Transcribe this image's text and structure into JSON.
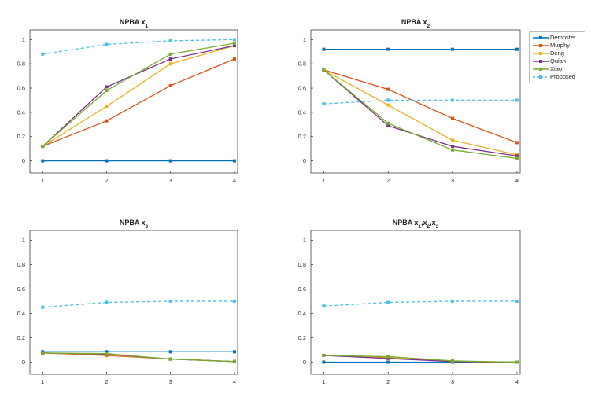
{
  "chart_data": [
    {
      "type": "line",
      "title": "NPBA x",
      "title_subscript": "1",
      "x": [
        1,
        2,
        3,
        4
      ],
      "xlim": [
        0.8,
        4.05
      ],
      "ylim": [
        -0.1,
        1.08
      ],
      "xticks": [
        "1",
        "2",
        "3",
        "4"
      ],
      "yticks": [
        "0",
        "0.2",
        "0.4",
        "0.6",
        "0.8",
        "1"
      ],
      "series": [
        {
          "name": "Dempster",
          "values": [
            0.0,
            0.0,
            0.0,
            0.0
          ]
        },
        {
          "name": "Murphy",
          "values": [
            0.12,
            0.33,
            0.62,
            0.84
          ]
        },
        {
          "name": "Deng",
          "values": [
            0.12,
            0.45,
            0.8,
            0.95
          ]
        },
        {
          "name": "Quian",
          "values": [
            0.12,
            0.61,
            0.84,
            0.95
          ]
        },
        {
          "name": "Xiao",
          "values": [
            0.12,
            0.58,
            0.88,
            0.97
          ]
        },
        {
          "name": "Proposed",
          "values": [
            0.88,
            0.96,
            0.99,
            1.0
          ]
        }
      ]
    },
    {
      "type": "line",
      "title": "NPBA x",
      "title_subscript": "2",
      "x": [
        1,
        2,
        3,
        4
      ],
      "xlim": [
        0.8,
        4.05
      ],
      "ylim": [
        -0.1,
        1.08
      ],
      "xticks": [
        "1",
        "2",
        "3",
        "4"
      ],
      "yticks": [
        "0",
        "0.2",
        "0.4",
        "0.6",
        "0.8",
        "1"
      ],
      "series": [
        {
          "name": "Dempster",
          "values": [
            0.92,
            0.92,
            0.92,
            0.92
          ]
        },
        {
          "name": "Murphy",
          "values": [
            0.75,
            0.59,
            0.35,
            0.15
          ]
        },
        {
          "name": "Deng",
          "values": [
            0.75,
            0.46,
            0.17,
            0.05
          ]
        },
        {
          "name": "Quian",
          "values": [
            0.75,
            0.29,
            0.12,
            0.04
          ]
        },
        {
          "name": "Xiao",
          "values": [
            0.75,
            0.31,
            0.09,
            0.02
          ]
        },
        {
          "name": "Proposed",
          "values": [
            0.47,
            0.5,
            0.5,
            0.5
          ]
        }
      ]
    },
    {
      "type": "line",
      "title": "NPBA x",
      "title_subscript": "3",
      "x": [
        1,
        2,
        3,
        4
      ],
      "xlim": [
        0.8,
        4.05
      ],
      "ylim": [
        -0.1,
        1.08
      ],
      "xticks": [
        "1",
        "2",
        "3",
        "4"
      ],
      "yticks": [
        "0",
        "0.2",
        "0.4",
        "0.6",
        "0.8",
        "1"
      ],
      "series": [
        {
          "name": "Dempster",
          "values": [
            0.085,
            0.085,
            0.085,
            0.085
          ]
        },
        {
          "name": "Murphy",
          "values": [
            0.075,
            0.055,
            0.025,
            0.005
          ]
        },
        {
          "name": "Deng",
          "values": [
            0.075,
            0.06,
            0.025,
            0.005
          ]
        },
        {
          "name": "Quian",
          "values": [
            0.075,
            0.065,
            0.025,
            0.005
          ]
        },
        {
          "name": "Xiao",
          "values": [
            0.075,
            0.07,
            0.025,
            0.005
          ]
        },
        {
          "name": "Proposed",
          "values": [
            0.45,
            0.49,
            0.5,
            0.5
          ]
        }
      ]
    },
    {
      "type": "line",
      "title": "NPBA x",
      "title_subscript": "1",
      "title_parts": [
        "NPBA x",
        "1",
        ",x",
        "2",
        ",x",
        "3"
      ],
      "x": [
        1,
        2,
        3,
        4
      ],
      "xlim": [
        0.8,
        4.05
      ],
      "ylim": [
        -0.1,
        1.08
      ],
      "xticks": [
        "1",
        "2",
        "3",
        "4"
      ],
      "yticks": [
        "0",
        "0.2",
        "0.4",
        "0.6",
        "0.8",
        "1"
      ],
      "series": [
        {
          "name": "Dempster",
          "values": [
            0.0,
            0.0,
            0.0,
            0.0
          ]
        },
        {
          "name": "Murphy",
          "values": [
            0.055,
            0.035,
            0.005,
            0.0
          ]
        },
        {
          "name": "Deng",
          "values": [
            0.055,
            0.04,
            0.005,
            0.0
          ]
        },
        {
          "name": "Quian",
          "values": [
            0.055,
            0.03,
            0.005,
            0.0
          ]
        },
        {
          "name": "Xiao",
          "values": [
            0.055,
            0.045,
            0.01,
            0.0
          ]
        },
        {
          "name": "Proposed",
          "values": [
            0.46,
            0.49,
            0.5,
            0.5
          ]
        }
      ]
    }
  ],
  "legend": {
    "items": [
      {
        "label": "Dempster",
        "color": "#0072BD",
        "style": "solid"
      },
      {
        "label": "Murphy",
        "color": "#D95319",
        "style": "solid"
      },
      {
        "label": "Deng",
        "color": "#EDB120",
        "style": "solid"
      },
      {
        "label": "Quian",
        "color": "#7E2F8E",
        "style": "solid"
      },
      {
        "label": "Xiao",
        "color": "#77AC30",
        "style": "solid"
      },
      {
        "label": "Proposed",
        "color": "#4DBEEE",
        "style": "dashed"
      }
    ]
  }
}
